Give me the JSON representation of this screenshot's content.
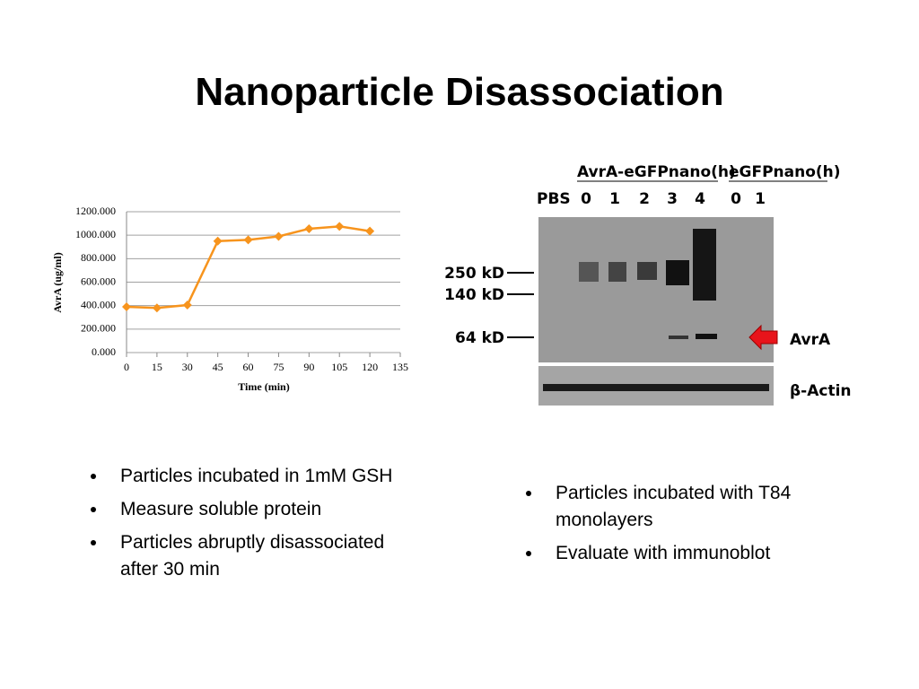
{
  "title": "Nanoparticle Disassociation",
  "chart_data": {
    "type": "line",
    "x": [
      0,
      15,
      30,
      45,
      60,
      75,
      90,
      105,
      120
    ],
    "series": [
      {
        "color": "#f7941d",
        "values": [
          390,
          380,
          405,
          950,
          960,
          990,
          1055,
          1075,
          1035
        ]
      }
    ],
    "xlim": [
      0,
      135
    ],
    "xticks": [
      0,
      15,
      30,
      45,
      60,
      75,
      90,
      105,
      120,
      135
    ],
    "ylim": [
      0,
      1200
    ],
    "yticks": [
      {
        "value": 0,
        "label": "0.000"
      },
      {
        "value": 200,
        "label": "200.000"
      },
      {
        "value": 400,
        "label": "400.000"
      },
      {
        "value": 600,
        "label": "600.000"
      },
      {
        "value": 800,
        "label": "800.000"
      },
      {
        "value": 1000,
        "label": "1000.000"
      },
      {
        "value": 1200,
        "label": "1200.000"
      }
    ],
    "x_label": "Time (min)",
    "y_label": "AvrA (ug/ml)",
    "grid": true
  },
  "blot": {
    "group_1": "AvrA-eGFPnano(h)",
    "group_2": "eGFPnano(h)",
    "lanes": [
      "PBS",
      "0",
      "1",
      "2",
      "3",
      "4",
      "0",
      "1"
    ],
    "markers": [
      "250 kD",
      "140 kD",
      "64 kD"
    ],
    "target": "AvrA",
    "control": "β-Actin"
  },
  "left_bullets": [
    "Particles incubated in 1mM GSH",
    "Measure soluble protein",
    "Particles abruptly disassociated after 30 min"
  ],
  "right_bullets": [
    "Particles incubated with T84 monolayers",
    "Evaluate with immunoblot"
  ]
}
